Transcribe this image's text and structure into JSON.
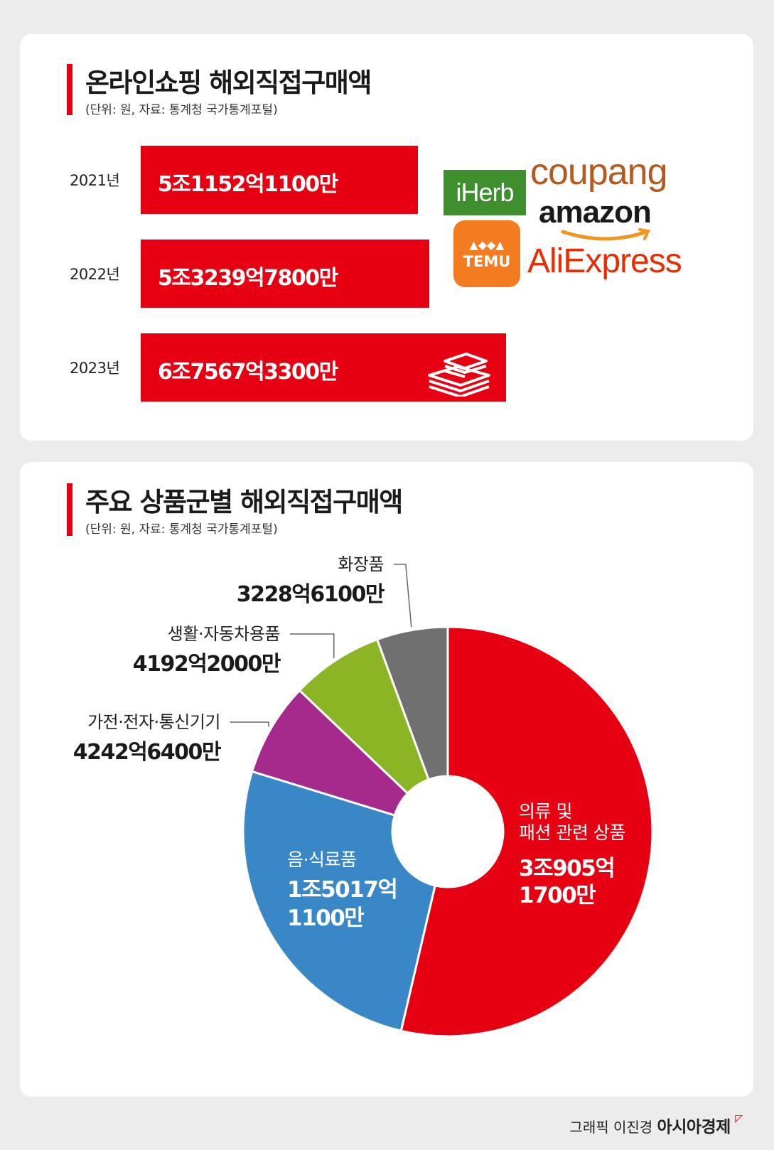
{
  "section1": {
    "title": "온라인쇼핑 해외직접구매액",
    "subtitle": "(단위: 원, 자료:  통계청 국가통계포털)",
    "bars": [
      {
        "year": "2021년",
        "label": "5조1152억1100만"
      },
      {
        "year": "2022년",
        "label": "5조3239억7800만"
      },
      {
        "year": "2023년",
        "label": "6조7567억3300만"
      }
    ],
    "logos": {
      "iherb": "iHerb",
      "coupang": "coupang",
      "amazon": "amazon",
      "temu": "TEMU",
      "aliexpress": "AliExpress"
    }
  },
  "section2": {
    "title": "주요 상품군별 해외직접구매액",
    "subtitle": "(단위: 원, 자료: 통계청 국가통계포털)"
  },
  "chart_data": [
    {
      "type": "bar",
      "orientation": "horizontal",
      "title": "온라인쇼핑 해외직접구매액",
      "categories": [
        "2021년",
        "2022년",
        "2023년"
      ],
      "values": [
        51152.11,
        53239.78,
        67567.33
      ],
      "unit": "억원",
      "labels": [
        "5조1152억1100만",
        "5조3239억7800만",
        "6조7567억3300만"
      ]
    },
    {
      "type": "pie",
      "donut": true,
      "title": "주요 상품군별 해외직접구매액",
      "categories": [
        "의류 및 패션 관련 상품",
        "음·식료품",
        "가전·전자·통신기기",
        "생활·자동차용품",
        "화장품"
      ],
      "values": [
        30905.17,
        15017.11,
        4242.64,
        4192.2,
        3228.61
      ],
      "unit": "억원",
      "labels": [
        "3조905억 1700만",
        "1조5017억 1100만",
        "4242억6400만",
        "4192억2000만",
        "3228억6100만"
      ],
      "colors": [
        "#e60012",
        "#3a87c8",
        "#a52a8c",
        "#8cb526",
        "#707070"
      ]
    }
  ],
  "colors": {
    "accent": "#e60012",
    "card": "#ffffff",
    "background": "#ececec"
  },
  "credit": {
    "author": "그래픽 이진경",
    "brand": "아시아경제"
  }
}
